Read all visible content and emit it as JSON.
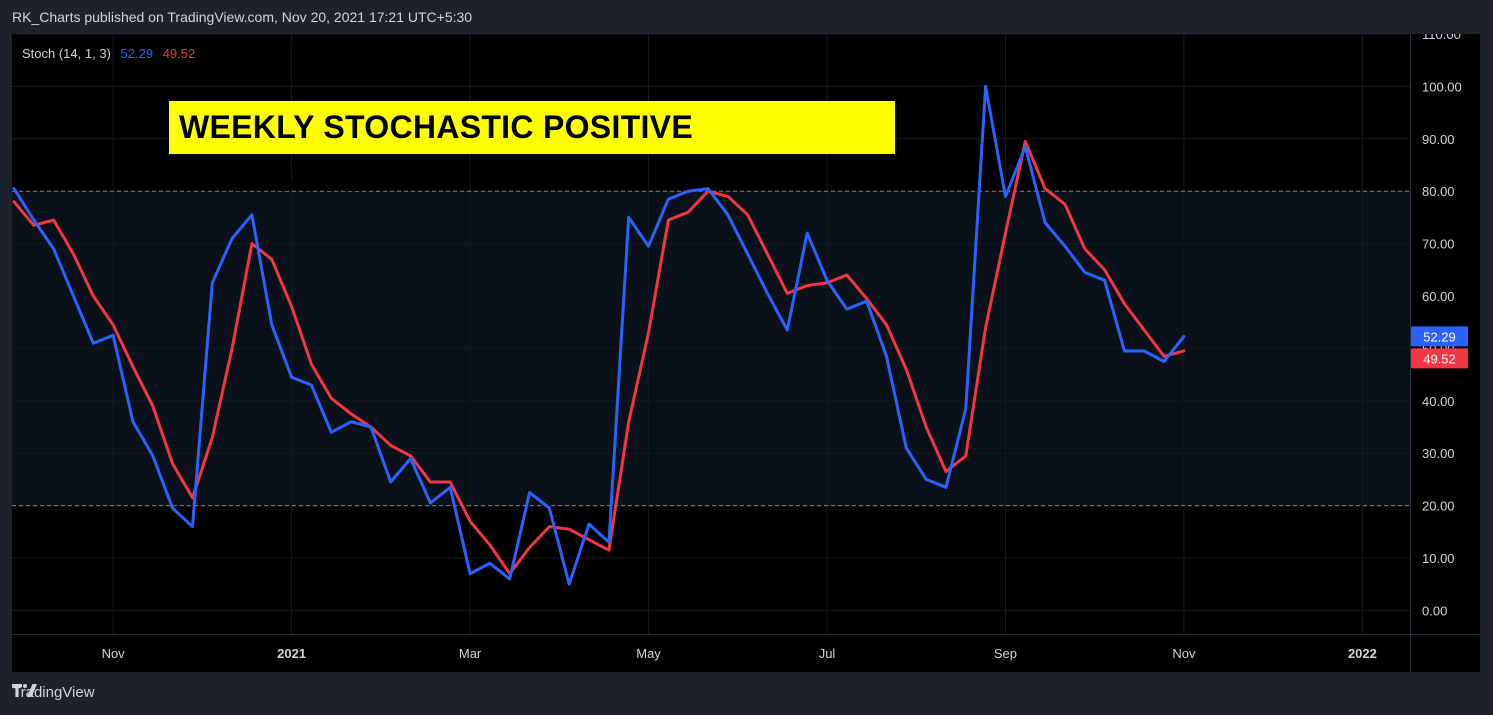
{
  "header": {
    "title": "RK_Charts published on TradingView.com, Nov 20, 2021 17:21 UTC+5:30"
  },
  "legend": {
    "name": "Stoch (14, 1, 3)",
    "k_value": "52.29",
    "d_value": "49.52"
  },
  "annotation": {
    "text": "WEEKLY STOCHASTIC POSITIVE CROSSOVER"
  },
  "footer": {
    "brand": "TradingView",
    "icon": "tradingview-logo-icon"
  },
  "colors": {
    "k": "#2962ff",
    "d": "#f23645",
    "band": "#0b1118",
    "background": "#000000"
  },
  "chart_data": {
    "type": "line",
    "ylim": [
      -4.5,
      110
    ],
    "yticks": [
      "110.00",
      "100.00",
      "90.00",
      "80.00",
      "70.00",
      "60.00",
      "50.00",
      "40.00",
      "30.00",
      "20.00",
      "10.00",
      "0.00"
    ],
    "ytick_values": [
      110,
      100,
      90,
      80,
      70,
      60,
      50,
      40,
      30,
      20,
      10,
      0
    ],
    "xticks": [
      {
        "label": "Nov",
        "index": 5,
        "bold": false
      },
      {
        "label": "2021",
        "index": 14,
        "bold": true
      },
      {
        "label": "Mar",
        "index": 23,
        "bold": false
      },
      {
        "label": "May",
        "index": 32,
        "bold": false
      },
      {
        "label": "Jul",
        "index": 41,
        "bold": false
      },
      {
        "label": "Sep",
        "index": 50,
        "bold": false
      },
      {
        "label": "Nov",
        "index": 59,
        "bold": false
      },
      {
        "label": "2022",
        "index": 68,
        "bold": true
      }
    ],
    "x_range": [
      -0.1,
      70.4
    ],
    "bands": {
      "upper": 80,
      "lower": 20
    },
    "series": [
      {
        "values": [
          80.5,
          74.5,
          69,
          60,
          51,
          52.5,
          36,
          29.5,
          19.5,
          16,
          62.5,
          71,
          75.5,
          54.5,
          44.5,
          43,
          34,
          36,
          35,
          24.5,
          29,
          20.5,
          23.5,
          7,
          9,
          6,
          22.5,
          19.5,
          5,
          16.5,
          13,
          75,
          69.5,
          78.5,
          80,
          80.5,
          75.5,
          68,
          60.5,
          53.5,
          72,
          63,
          57.5,
          59,
          48.5,
          31,
          25,
          23.5,
          38.5,
          100,
          79,
          88.5,
          74,
          69.5,
          64.5,
          63,
          49.5,
          49.5,
          47.5,
          52.29
        ],
        "label": "52.29"
      },
      {
        "values": [
          78,
          73.5,
          74.5,
          68,
          60,
          54.5,
          46.5,
          39,
          28,
          21.5,
          33,
          50,
          70,
          67,
          58,
          47,
          40.5,
          37.5,
          35,
          31.5,
          29.5,
          24.5,
          24.5,
          17,
          12.5,
          7,
          12,
          16,
          15.5,
          13.5,
          11.5,
          36,
          53,
          74.5,
          76,
          80,
          79,
          75.5,
          68,
          60.5,
          62,
          62.5,
          64,
          59.5,
          54.5,
          46,
          35,
          26.5,
          29.5,
          54,
          72,
          89.5,
          80.5,
          77.5,
          69,
          65,
          58.5,
          53.5,
          48.5,
          49.52
        ],
        "label": "49.52"
      }
    ]
  }
}
